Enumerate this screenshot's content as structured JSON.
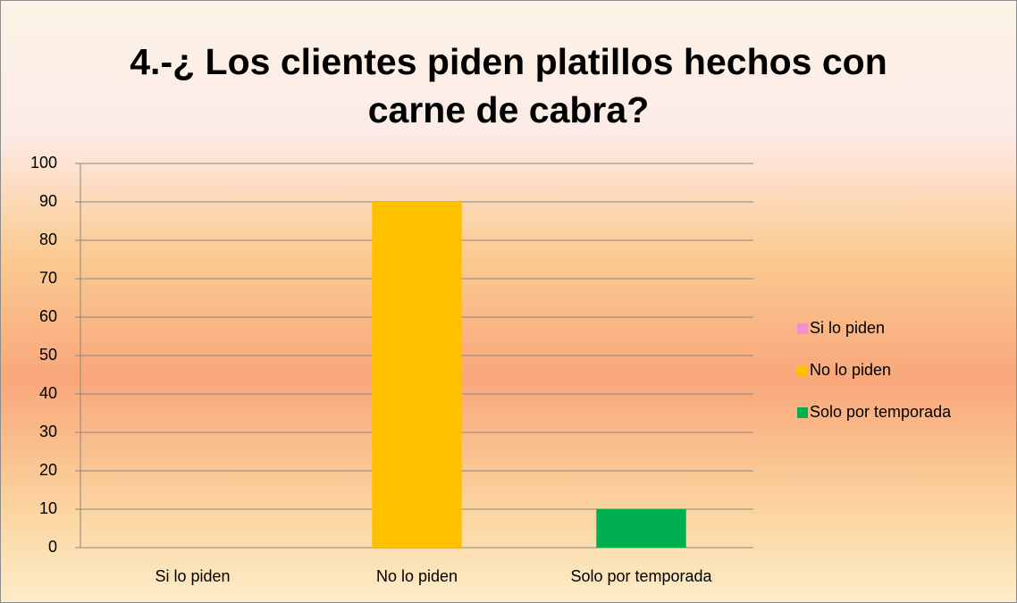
{
  "chart_data": {
    "type": "bar",
    "title": "4.-¿ Los clientes piden platillos hechos con carne de cabra?",
    "categories": [
      "Si lo piden",
      "No lo piden",
      "Solo por temporada"
    ],
    "values": [
      0,
      90,
      10
    ],
    "colors": [
      "#f28fd0",
      "#ffc000",
      "#00b050"
    ],
    "ylim": [
      0,
      100
    ],
    "yticks": [
      0,
      10,
      20,
      30,
      40,
      50,
      60,
      70,
      80,
      90,
      100
    ],
    "grid": true,
    "legend": "right"
  }
}
